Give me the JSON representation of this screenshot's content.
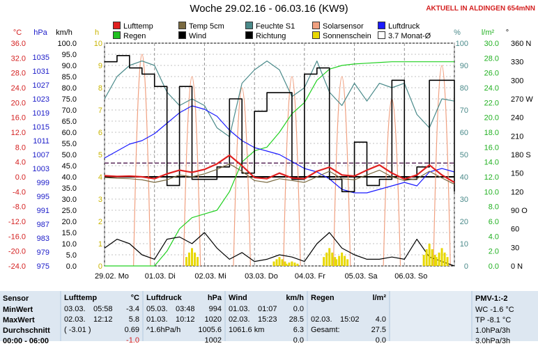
{
  "header": {
    "title": "Woche 29.02.16 - 06.03.16 (KW9)",
    "status": "AKTUELL IN ALDINGEN 654mNN"
  },
  "legend": [
    {
      "label": "Lufttemp",
      "color": "#e02020"
    },
    {
      "label": "Temp 5cm",
      "color": "#7a6a40"
    },
    {
      "label": "Feuchte S1",
      "color": "#4a8a8a"
    },
    {
      "label": "Solarsensor",
      "color": "#f0a080"
    },
    {
      "label": "Luftdruck",
      "color": "#1a1aff"
    },
    {
      "label": "Regen",
      "color": "#20c020"
    },
    {
      "label": "Wind",
      "color": "#000000"
    },
    {
      "label": "Richtung",
      "color": "#000000"
    },
    {
      "label": "Sonnenschein",
      "color": "#e8d800"
    },
    {
      "label": "3.7 Monat-Ø",
      "color": "#ffffff"
    }
  ],
  "axes": {
    "temp": {
      "unit": "°C",
      "ticks": [
        "36.0",
        "32.0",
        "28.0",
        "24.0",
        "20.0",
        "16.0",
        "12.0",
        "8.0",
        "4.0",
        "0.0",
        "-4.0",
        "-8.0",
        "-12.0",
        "-16.0",
        "-20.0",
        "-24.0"
      ],
      "color": "#d42020"
    },
    "pressure": {
      "unit": "hPa",
      "ticks": [
        "",
        "1035",
        "1031",
        "1027",
        "1023",
        "1019",
        "1015",
        "1011",
        "1007",
        "1003",
        "999",
        "995",
        "991",
        "987",
        "983",
        "979",
        "975"
      ],
      "color": "#1a1ac8"
    },
    "wind": {
      "unit": "km/h",
      "ticks": [
        "100.0",
        "95.0",
        "90.0",
        "85.0",
        "80.0",
        "75.0",
        "70.0",
        "65.0",
        "60.0",
        "55.0",
        "50.0",
        "45.0",
        "40.0",
        "35.0",
        "30.0",
        "25.0",
        "20.0",
        "15.0",
        "10.0",
        "5.0",
        "0.0"
      ],
      "color": "#000000"
    },
    "sun": {
      "unit": "h",
      "ticks": [
        "10",
        "9",
        "8",
        "7",
        "6",
        "5",
        "4",
        "3",
        "2",
        "1",
        "0"
      ],
      "color": "#c8b400"
    },
    "humidity": {
      "unit": "%",
      "ticks": [
        "100",
        "90",
        "80",
        "70",
        "60",
        "50",
        "40",
        "30",
        "20",
        "10",
        "0"
      ],
      "color": "#4a8a8a"
    },
    "rain": {
      "unit": "l/m²",
      "ticks": [
        "30.0",
        "28.0",
        "26.0",
        "24.0",
        "22.0",
        "20.0",
        "18.0",
        "16.0",
        "14.0",
        "12.0",
        "10.0",
        "8.0",
        "6.0",
        "4.0",
        "2.0",
        "0.0"
      ],
      "color": "#20b020"
    },
    "direction": {
      "unit": "°",
      "ticks": [
        "360 N",
        "330",
        "300",
        "270 W",
        "240",
        "210",
        "180 S",
        "150",
        "120",
        "90 O",
        "60",
        "30",
        "0 N"
      ],
      "color": "#000000"
    },
    "x_ticks": [
      "29.02. Mo",
      "01.03. Di",
      "02.03. Mi",
      "03.03. Do",
      "04.03. Fr",
      "05.03. Sa",
      "06.03. So"
    ]
  },
  "chart_data": {
    "type": "line",
    "title": "Woche 29.02.16 - 06.03.16 (KW9)",
    "x_unit": "days from 29.02. 00:00",
    "xlim": [
      0,
      7
    ],
    "x": [
      0,
      0.25,
      0.5,
      0.75,
      1,
      1.25,
      1.5,
      1.75,
      2,
      2.25,
      2.5,
      2.75,
      3,
      3.25,
      3.5,
      3.75,
      4,
      4.25,
      4.5,
      4.75,
      5,
      5.25,
      5.5,
      5.75,
      6,
      6.25,
      6.5,
      6.75,
      7
    ],
    "series": [
      {
        "name": "Lufttemp",
        "axis": "temp",
        "values": [
          0.3,
          0.1,
          0.2,
          0.0,
          -0.5,
          0.8,
          1.8,
          1.2,
          2.0,
          3.5,
          5.8,
          3.0,
          -0.2,
          -0.5,
          1.0,
          -0.3,
          -0.5,
          1.5,
          2.6,
          0.5,
          0.2,
          1.8,
          3.2,
          1.0,
          -0.6,
          0.5,
          3.2,
          0.5,
          -1.5
        ]
      },
      {
        "name": "Temp 5cm",
        "axis": "temp",
        "values": [
          -0.2,
          -0.4,
          -0.5,
          -0.8,
          -1.5,
          -0.8,
          0.5,
          0.0,
          0.8,
          2.0,
          3.5,
          1.5,
          -1.0,
          -1.5,
          -0.5,
          -1.0,
          -1.5,
          0.0,
          1.5,
          -0.5,
          -0.8,
          0.5,
          1.8,
          0.0,
          -1.0,
          -0.5,
          1.5,
          -0.3,
          -2.0
        ]
      },
      {
        "name": "Feuchte S1",
        "axis": "humidity",
        "values": [
          75,
          85,
          90,
          92,
          90,
          78,
          72,
          75,
          72,
          62,
          58,
          82,
          88,
          92,
          88,
          76,
          80,
          92,
          78,
          72,
          82,
          74,
          82,
          80,
          82,
          68,
          62,
          75,
          74
        ]
      },
      {
        "name": "Luftdruck",
        "axis": "pressure",
        "values": [
          1006,
          1008,
          1010,
          1011,
          1013,
          1016,
          1019,
          1021,
          1020,
          1018,
          1014,
          1011,
          1009,
          1008,
          1007,
          1005,
          1003,
          1002,
          1000,
          997,
          996,
          996,
          997,
          998,
          999,
          998,
          1002,
          1003,
          1002
        ]
      },
      {
        "name": "Regen",
        "axis": "rain",
        "values": [
          0,
          0,
          0,
          0,
          0,
          2.0,
          5.0,
          6.5,
          7.0,
          7.5,
          10.0,
          14.0,
          15.5,
          16.0,
          18.0,
          20.5,
          22.0,
          25.0,
          26.5,
          27.0,
          27.2,
          27.3,
          27.4,
          27.5,
          27.5,
          27.5,
          27.5,
          27.5,
          27.5
        ]
      },
      {
        "name": "Wind",
        "axis": "wind",
        "values": [
          8,
          12,
          10,
          5,
          3,
          12,
          13,
          10,
          15,
          8,
          3,
          6,
          2,
          3,
          5,
          4,
          2,
          10,
          15,
          8,
          5,
          3,
          3,
          4,
          3,
          12,
          4,
          2,
          0
        ]
      },
      {
        "name": "Richtung",
        "axis": "direction",
        "values": [
          330,
          340,
          320,
          310,
          290,
          130,
          290,
          140,
          140,
          160,
          270,
          150,
          250,
          280,
          280,
          140,
          310,
          320,
          140,
          120,
          200,
          130,
          140,
          300,
          140,
          160,
          300,
          300,
          120
        ]
      },
      {
        "name": "Sonnenschein",
        "axis": "sun",
        "values": [
          0,
          0,
          0,
          0,
          0,
          0,
          0,
          0.8,
          0,
          0,
          0,
          0,
          0,
          0,
          0.4,
          0.2,
          0,
          0,
          0.8,
          0.6,
          0,
          0,
          0,
          0,
          0,
          0,
          1.0,
          0.8,
          0
        ]
      },
      {
        "name": "Solarsensor",
        "axis": "wind",
        "values": [
          0,
          0,
          0,
          95,
          0,
          0,
          0,
          85,
          0,
          0,
          0,
          80,
          0,
          0,
          0,
          85,
          0,
          0,
          0,
          85,
          0,
          0,
          0,
          75,
          0,
          0,
          0,
          90,
          0
        ]
      }
    ],
    "monthly_average": {
      "name": "3.7 Monat-Ø",
      "axis": "temp",
      "value": 3.7
    },
    "ylim_temp": [
      -24,
      36
    ],
    "ylim_wind": [
      0,
      100
    ],
    "grid": true,
    "legend_position": "top"
  },
  "panel": {
    "sensor": {
      "header": "Sensor",
      "rows": [
        "MinWert",
        "MaxWert",
        "Durchschnitt",
        "00:00 - 06:00"
      ]
    },
    "lufttemp": {
      "header": "Lufttemp",
      "unit": "°C",
      "rows": [
        [
          "03.03.",
          "05:58",
          "-3.4"
        ],
        [
          "02.03.",
          "12:12",
          "5.8"
        ],
        [
          "( -3.01 )",
          "",
          "0.69"
        ],
        [
          "",
          "",
          "-1.0"
        ]
      ]
    },
    "luftdruck": {
      "header": "Luftdruck",
      "unit": "hPa",
      "rows": [
        [
          "05.03.",
          "03:48",
          "994"
        ],
        [
          "01.03.",
          "10:12",
          "1020"
        ],
        [
          "^1.6hPa/h",
          "",
          "1005.6"
        ],
        [
          "",
          "",
          "1002"
        ]
      ]
    },
    "wind": {
      "header": "Wind",
      "unit": "km/h",
      "rows": [
        [
          "01.03.",
          "01:07",
          "0.0"
        ],
        [
          "02.03.",
          "15:23",
          "28.5"
        ],
        [
          "1061.6 km",
          "",
          "6.3"
        ],
        [
          "",
          "",
          "0.0"
        ]
      ]
    },
    "regen": {
      "header": "Regen",
      "unit": "l/m²",
      "rows": [
        [
          "",
          "",
          ""
        ],
        [
          "02.03.",
          "15:02",
          "4.0"
        ],
        [
          "Gesamt:",
          "",
          "27.5"
        ],
        [
          "",
          "",
          "0.0"
        ]
      ]
    },
    "pmv": {
      "header": "PMV-1:-2",
      "rows": [
        "WC -1.6 °C",
        "TP -8.1 °C",
        "1.0hPa/3h",
        "3.0hPa/3h"
      ]
    }
  }
}
